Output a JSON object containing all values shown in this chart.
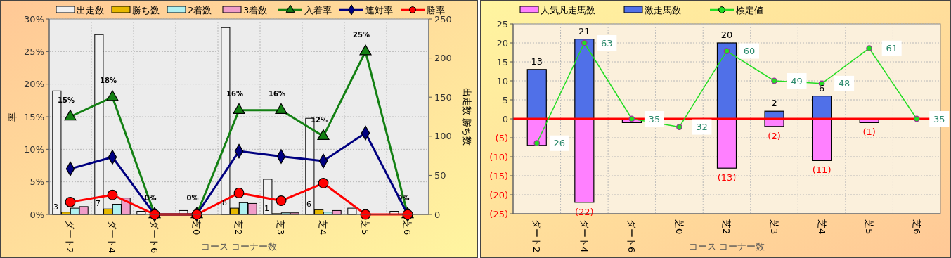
{
  "chart_data": [
    {
      "type": "bar",
      "xlabel": "コース コーナー数",
      "ylabel": "率",
      "y2label": "出走数 勝ち数",
      "categories": [
        "ダート2",
        "ダート4",
        "ダート6",
        "芝0",
        "芝2",
        "芝3",
        "芝4",
        "芝5",
        "芝6"
      ],
      "ylim": [
        0,
        30
      ],
      "yticks": [
        {
          "value": 0,
          "label": "0%"
        },
        {
          "value": 5,
          "label": "5%"
        },
        {
          "value": 10,
          "label": "10%"
        },
        {
          "value": 15,
          "label": "15%"
        },
        {
          "value": 20,
          "label": "20%"
        },
        {
          "value": 25,
          "label": "25%"
        },
        {
          "value": 30,
          "label": "30%"
        }
      ],
      "y2lim": [
        0,
        250
      ],
      "y2ticks": [
        0,
        50,
        100,
        150,
        200,
        250
      ],
      "grid": true,
      "legend": "top",
      "series": [
        {
          "name": "出走数",
          "type": "bar",
          "axis": "y2",
          "color": "#f0f0f0",
          "values": [
            158,
            230,
            4,
            5,
            239,
            45,
            123,
            8,
            4
          ]
        },
        {
          "name": "勝ち数",
          "type": "bar",
          "axis": "y2",
          "color": "#e6b800",
          "values": [
            3,
            7,
            0,
            0,
            8,
            1,
            6,
            0,
            0
          ],
          "value_labels": [
            "3",
            "7",
            null,
            null,
            "8",
            "1",
            "6",
            null,
            null
          ]
        },
        {
          "name": "2着数",
          "type": "bar",
          "axis": "y2",
          "color": "#b0f0f0",
          "values": [
            8,
            13,
            0,
            0,
            15,
            2,
            3,
            0,
            0
          ]
        },
        {
          "name": "3着数",
          "type": "bar",
          "axis": "y2",
          "color": "#f09cc8",
          "values": [
            10,
            21,
            0,
            0,
            14,
            2,
            5,
            0,
            0
          ]
        },
        {
          "name": "入着率",
          "type": "line",
          "axis": "y",
          "color": "#138013",
          "marker": "triangle",
          "values": [
            15,
            18,
            0,
            0,
            16,
            16,
            12,
            25,
            0
          ],
          "value_labels": [
            "15%",
            "18%",
            "0%",
            "0%",
            "16%",
            "16%",
            "12%",
            "25%",
            "0%"
          ]
        },
        {
          "name": "連対率",
          "type": "line",
          "axis": "y",
          "color": "#000080",
          "marker": "diamond",
          "values": [
            7,
            8.8,
            0,
            0,
            9.7,
            8.9,
            8.2,
            12.5,
            0
          ]
        },
        {
          "name": "勝率",
          "type": "line",
          "axis": "y",
          "color": "#ff0000",
          "marker": "circle",
          "values": [
            1.9,
            3,
            0,
            0,
            3.3,
            2.1,
            4.8,
            0,
            0
          ]
        }
      ]
    },
    {
      "type": "bar",
      "stacked": true,
      "xlabel": "コース コーナー数",
      "categories": [
        "ダート2",
        "ダート4",
        "ダート6",
        "芝0",
        "芝2",
        "芝3",
        "芝4",
        "芝5",
        "芝6"
      ],
      "ylim": [
        -25,
        25
      ],
      "yticks": [
        {
          "value": -25,
          "label": "(25)"
        },
        {
          "value": -20,
          "label": "(20)"
        },
        {
          "value": -15,
          "label": "(15)"
        },
        {
          "value": -10,
          "label": "(10)"
        },
        {
          "value": -5,
          "label": "(5)"
        },
        0,
        5,
        10,
        15,
        20,
        25
      ],
      "y2lim": [
        0,
        70
      ],
      "grid": true,
      "legend": "top",
      "ref_lines": [
        {
          "axis": "y",
          "value": 0,
          "color": "#ff0000"
        }
      ],
      "series": [
        {
          "name": "人気凡走馬数",
          "type": "bar",
          "axis": "y",
          "color": "#ff80ff",
          "values": [
            -7,
            -22,
            -1,
            0,
            -13,
            -2,
            -11,
            -1,
            0
          ],
          "value_labels": [
            null,
            "(22)",
            null,
            null,
            "(13)",
            "(2)",
            "(11)",
            "(1)",
            null
          ]
        },
        {
          "name": "激走馬数",
          "type": "bar",
          "axis": "y",
          "color": "#5070e8",
          "values": [
            13,
            21,
            0,
            0,
            20,
            2,
            6,
            0,
            0
          ],
          "value_labels": [
            "13",
            "21",
            null,
            null,
            "20",
            "2",
            "6",
            null,
            null
          ]
        },
        {
          "name": "検定値",
          "type": "line",
          "axis": "y2",
          "color": "#22dd22",
          "marker": "circle",
          "values": [
            26,
            63,
            35,
            32,
            60,
            49,
            48,
            61,
            35
          ],
          "value_labels": [
            "26",
            "63",
            "35",
            "32",
            "60",
            "49",
            "48",
            "61",
            "35"
          ]
        }
      ]
    }
  ]
}
